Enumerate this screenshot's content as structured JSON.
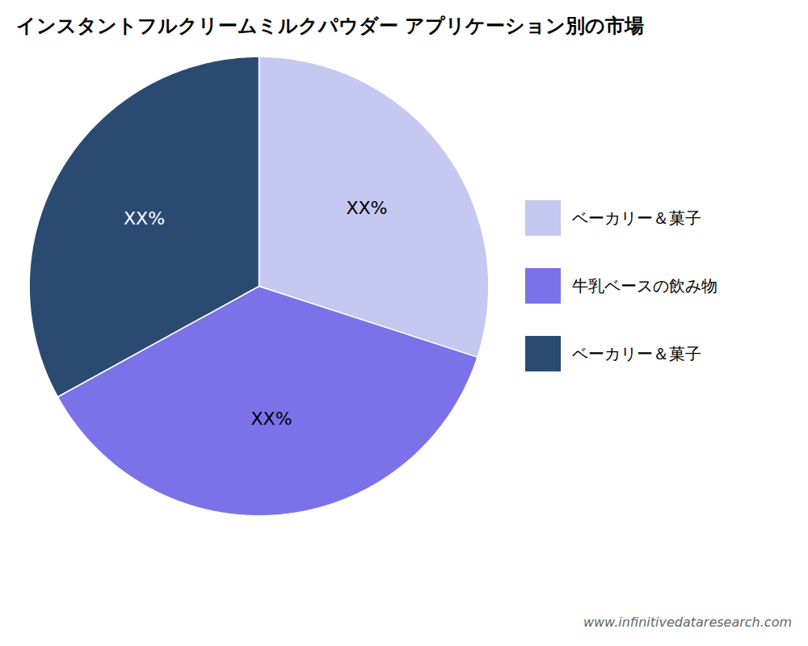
{
  "chart_data": {
    "type": "pie",
    "title": "インスタントフルクリームミルクパウダー アプリケーション別の市場",
    "categories": [
      "ベーカリー＆菓子",
      "牛乳ベースの飲み物",
      "ベーカリー＆菓子"
    ],
    "values": [
      30,
      37,
      33
    ],
    "value_labels": [
      "XX%",
      "XX%",
      "XX%"
    ],
    "colors": [
      "#C5C8F0",
      "#7B72E9",
      "#2B4A72"
    ],
    "data_labels": true,
    "legend": "right",
    "annotations": [
      "www.infinitivedataresearch.com"
    ]
  }
}
